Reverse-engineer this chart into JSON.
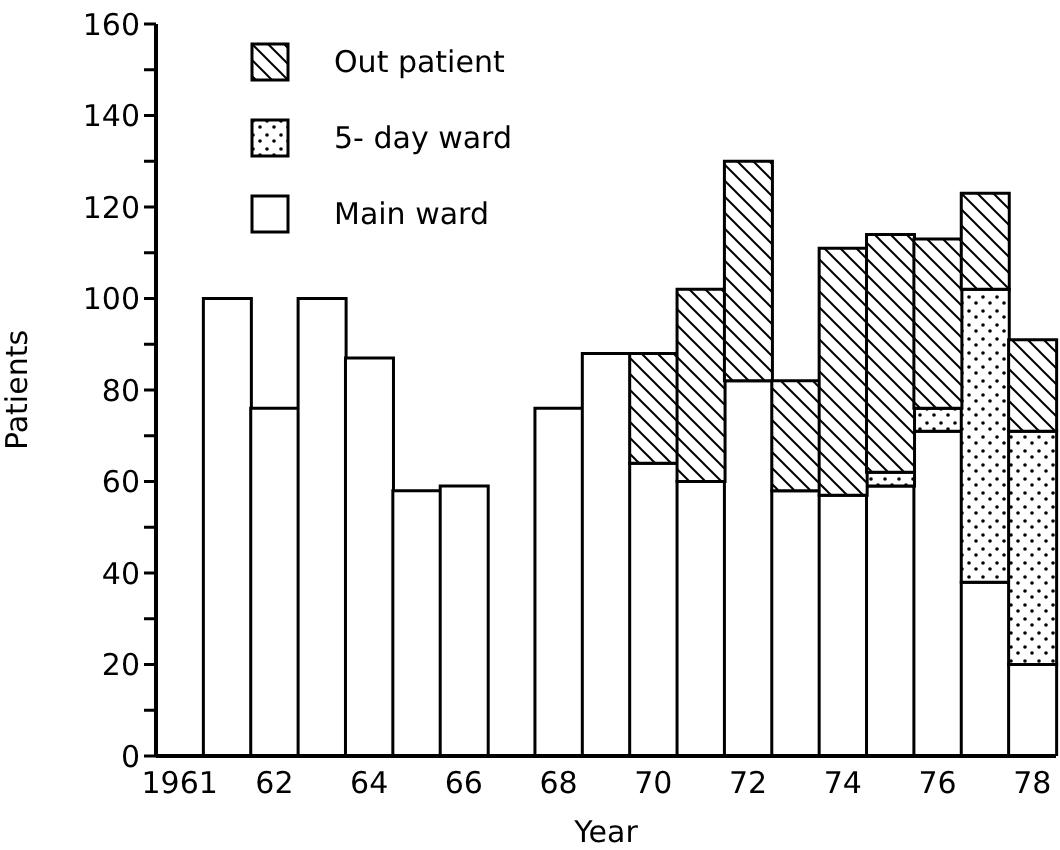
{
  "chart_data": {
    "type": "bar",
    "stacked": true,
    "xlabel": "Year",
    "ylabel": "Patients",
    "categories": [
      "1961",
      null,
      "62",
      null,
      "64",
      null,
      "66",
      null,
      "68",
      null,
      "70",
      null,
      "72",
      null,
      "74",
      null,
      "76",
      null,
      "78"
    ],
    "series": [
      {
        "name": "Main ward",
        "color": "#ffffff",
        "values": [
          null,
          100,
          76,
          100,
          87,
          58,
          59,
          null,
          76,
          88,
          64,
          60,
          82,
          58,
          57,
          59,
          71,
          38,
          20
        ]
      },
      {
        "name": "5- day ward",
        "color": "#000000",
        "values": [
          null,
          null,
          null,
          null,
          null,
          null,
          null,
          null,
          null,
          null,
          null,
          null,
          null,
          null,
          null,
          3,
          5,
          64,
          51
        ]
      },
      {
        "name": "Out patient",
        "color": "#000000",
        "values": [
          null,
          null,
          null,
          null,
          null,
          null,
          null,
          null,
          null,
          null,
          24,
          42,
          48,
          24,
          54,
          52,
          37,
          21,
          20
        ]
      }
    ],
    "ylim": [
      0,
      160
    ],
    "yticks": [
      0,
      {
        "value": 10,
        "label": null
      },
      20,
      {
        "value": 30,
        "label": null
      },
      40,
      {
        "value": 50,
        "label": null
      },
      60,
      {
        "value": 70,
        "label": null
      },
      80,
      {
        "value": 90,
        "label": null
      },
      100,
      {
        "value": 110,
        "label": null
      },
      120,
      {
        "value": 130,
        "label": null
      },
      140,
      {
        "value": 150,
        "label": null
      },
      160
    ],
    "legend": "top left",
    "grid": false
  }
}
